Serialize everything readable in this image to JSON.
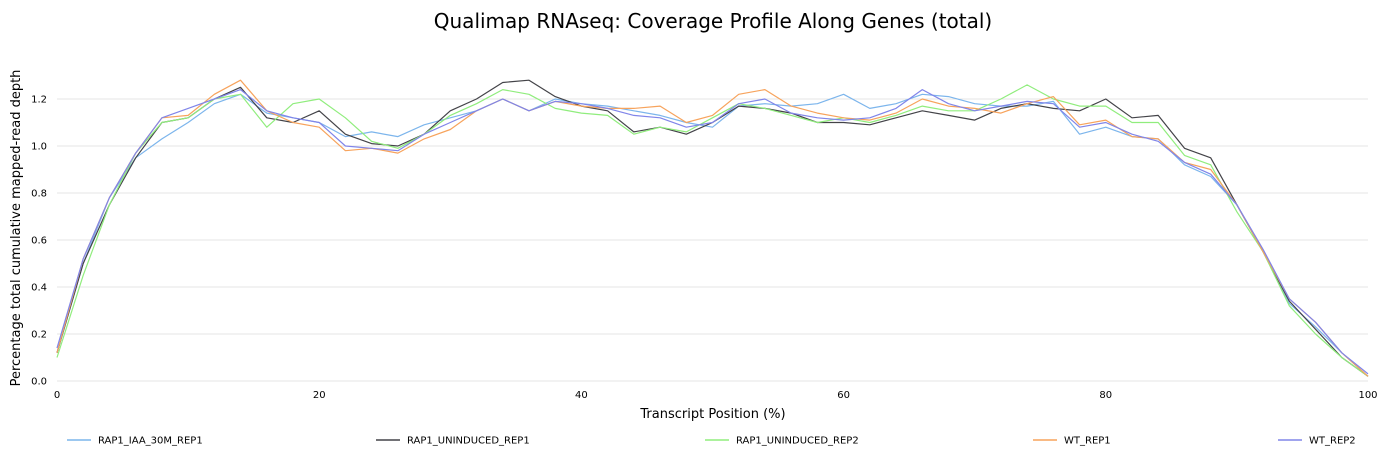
{
  "chart_data": {
    "type": "line",
    "title": "Qualimap RNAseq: Coverage Profile Along Genes (total)",
    "xlabel": "Transcript Position (%)",
    "ylabel": "Percentage total cumulative mapped-read depth",
    "xlim": [
      0,
      100
    ],
    "ylim": [
      0,
      1.4
    ],
    "xticks": [
      0,
      20,
      40,
      60,
      80,
      100
    ],
    "yticks": [
      0.0,
      0.2,
      0.4,
      0.6,
      0.8,
      1.0,
      1.2
    ],
    "grid": "horizontal",
    "legend_position": "bottom",
    "x": [
      0,
      2,
      4,
      6,
      8,
      10,
      12,
      14,
      16,
      18,
      20,
      22,
      24,
      26,
      28,
      30,
      32,
      34,
      36,
      38,
      40,
      42,
      44,
      46,
      48,
      50,
      52,
      54,
      56,
      58,
      60,
      62,
      64,
      66,
      68,
      70,
      72,
      74,
      76,
      78,
      80,
      82,
      84,
      86,
      88,
      90,
      92,
      94,
      96,
      98,
      100
    ],
    "series": [
      {
        "name": "RAP1_IAA_30M_REP1",
        "color": "#7cb5ec",
        "values": [
          0.12,
          0.5,
          0.78,
          0.95,
          1.03,
          1.1,
          1.18,
          1.22,
          1.14,
          1.12,
          1.1,
          1.04,
          1.06,
          1.04,
          1.09,
          1.12,
          1.15,
          1.2,
          1.15,
          1.2,
          1.18,
          1.17,
          1.15,
          1.13,
          1.1,
          1.08,
          1.17,
          1.18,
          1.17,
          1.18,
          1.22,
          1.16,
          1.18,
          1.22,
          1.21,
          1.18,
          1.17,
          1.17,
          1.19,
          1.05,
          1.08,
          1.04,
          1.03,
          0.92,
          0.87,
          0.75,
          0.55,
          0.33,
          0.23,
          0.12,
          0.02
        ]
      },
      {
        "name": "RAP1_UNINDUCED_REP1",
        "color": "#434348",
        "values": [
          0.12,
          0.5,
          0.75,
          0.95,
          1.1,
          1.12,
          1.2,
          1.25,
          1.12,
          1.1,
          1.15,
          1.05,
          1.01,
          1.0,
          1.05,
          1.15,
          1.2,
          1.27,
          1.28,
          1.21,
          1.17,
          1.15,
          1.06,
          1.08,
          1.05,
          1.1,
          1.17,
          1.16,
          1.14,
          1.1,
          1.1,
          1.09,
          1.12,
          1.15,
          1.13,
          1.11,
          1.16,
          1.18,
          1.16,
          1.15,
          1.2,
          1.12,
          1.13,
          0.99,
          0.95,
          0.75,
          0.55,
          0.34,
          0.22,
          0.1,
          0.02
        ]
      },
      {
        "name": "RAP1_UNINDUCED_REP2",
        "color": "#90ed7d",
        "values": [
          0.1,
          0.45,
          0.75,
          0.97,
          1.1,
          1.12,
          1.2,
          1.22,
          1.08,
          1.18,
          1.2,
          1.12,
          1.02,
          0.99,
          1.05,
          1.13,
          1.18,
          1.24,
          1.22,
          1.16,
          1.14,
          1.13,
          1.05,
          1.08,
          1.06,
          1.12,
          1.18,
          1.16,
          1.13,
          1.1,
          1.12,
          1.1,
          1.13,
          1.17,
          1.15,
          1.15,
          1.2,
          1.26,
          1.2,
          1.17,
          1.17,
          1.1,
          1.1,
          0.96,
          0.92,
          0.72,
          0.55,
          0.32,
          0.2,
          0.1,
          0.02
        ]
      },
      {
        "name": "WT_REP1",
        "color": "#f7a35c",
        "values": [
          0.12,
          0.52,
          0.78,
          0.97,
          1.12,
          1.13,
          1.22,
          1.28,
          1.15,
          1.1,
          1.08,
          0.98,
          0.99,
          0.97,
          1.03,
          1.07,
          1.15,
          1.2,
          1.15,
          1.19,
          1.17,
          1.16,
          1.16,
          1.17,
          1.1,
          1.13,
          1.22,
          1.24,
          1.17,
          1.14,
          1.12,
          1.11,
          1.14,
          1.2,
          1.17,
          1.16,
          1.14,
          1.18,
          1.21,
          1.09,
          1.11,
          1.04,
          1.03,
          0.93,
          0.9,
          0.75,
          0.55,
          0.35,
          0.25,
          0.12,
          0.02
        ]
      },
      {
        "name": "WT_REP2",
        "color": "#8085e9",
        "values": [
          0.14,
          0.52,
          0.78,
          0.97,
          1.12,
          1.16,
          1.2,
          1.24,
          1.15,
          1.12,
          1.1,
          1.0,
          0.99,
          0.98,
          1.05,
          1.1,
          1.15,
          1.2,
          1.15,
          1.19,
          1.18,
          1.16,
          1.13,
          1.12,
          1.08,
          1.1,
          1.18,
          1.2,
          1.14,
          1.12,
          1.11,
          1.12,
          1.16,
          1.24,
          1.18,
          1.15,
          1.17,
          1.19,
          1.18,
          1.08,
          1.1,
          1.05,
          1.02,
          0.93,
          0.88,
          0.75,
          0.56,
          0.35,
          0.25,
          0.12,
          0.03
        ]
      }
    ]
  }
}
